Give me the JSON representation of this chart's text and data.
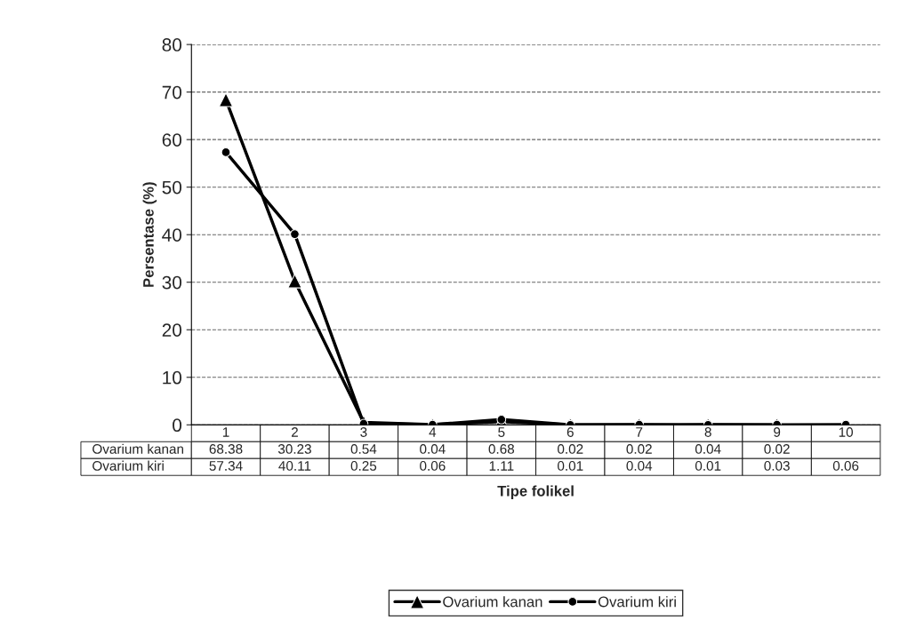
{
  "chart_data": {
    "type": "line",
    "xlabel": "Tipe folikel",
    "ylabel": "Persentase (%)",
    "categories": [
      "1",
      "2",
      "3",
      "4",
      "5",
      "6",
      "7",
      "8",
      "9",
      "10"
    ],
    "series": [
      {
        "name": "Ovarium kanan",
        "color": "#000000",
        "marker": "triangle",
        "values": [
          68.38,
          30.23,
          0.54,
          0.04,
          0.68,
          0.02,
          0.02,
          0.04,
          0.02,
          null
        ]
      },
      {
        "name": "Ovarium kiri",
        "color": "#000000",
        "marker": "circle",
        "values": [
          57.34,
          40.11,
          0.25,
          0.06,
          1.11,
          0.01,
          0.04,
          0.01,
          0.03,
          0.06
        ]
      }
    ],
    "ylim": [
      0,
      80
    ],
    "yticks": [
      0,
      10,
      20,
      30,
      40,
      50,
      60,
      70,
      80
    ],
    "grid": "y",
    "legend": "bottom",
    "data_labels": true,
    "line_style": "solid"
  }
}
